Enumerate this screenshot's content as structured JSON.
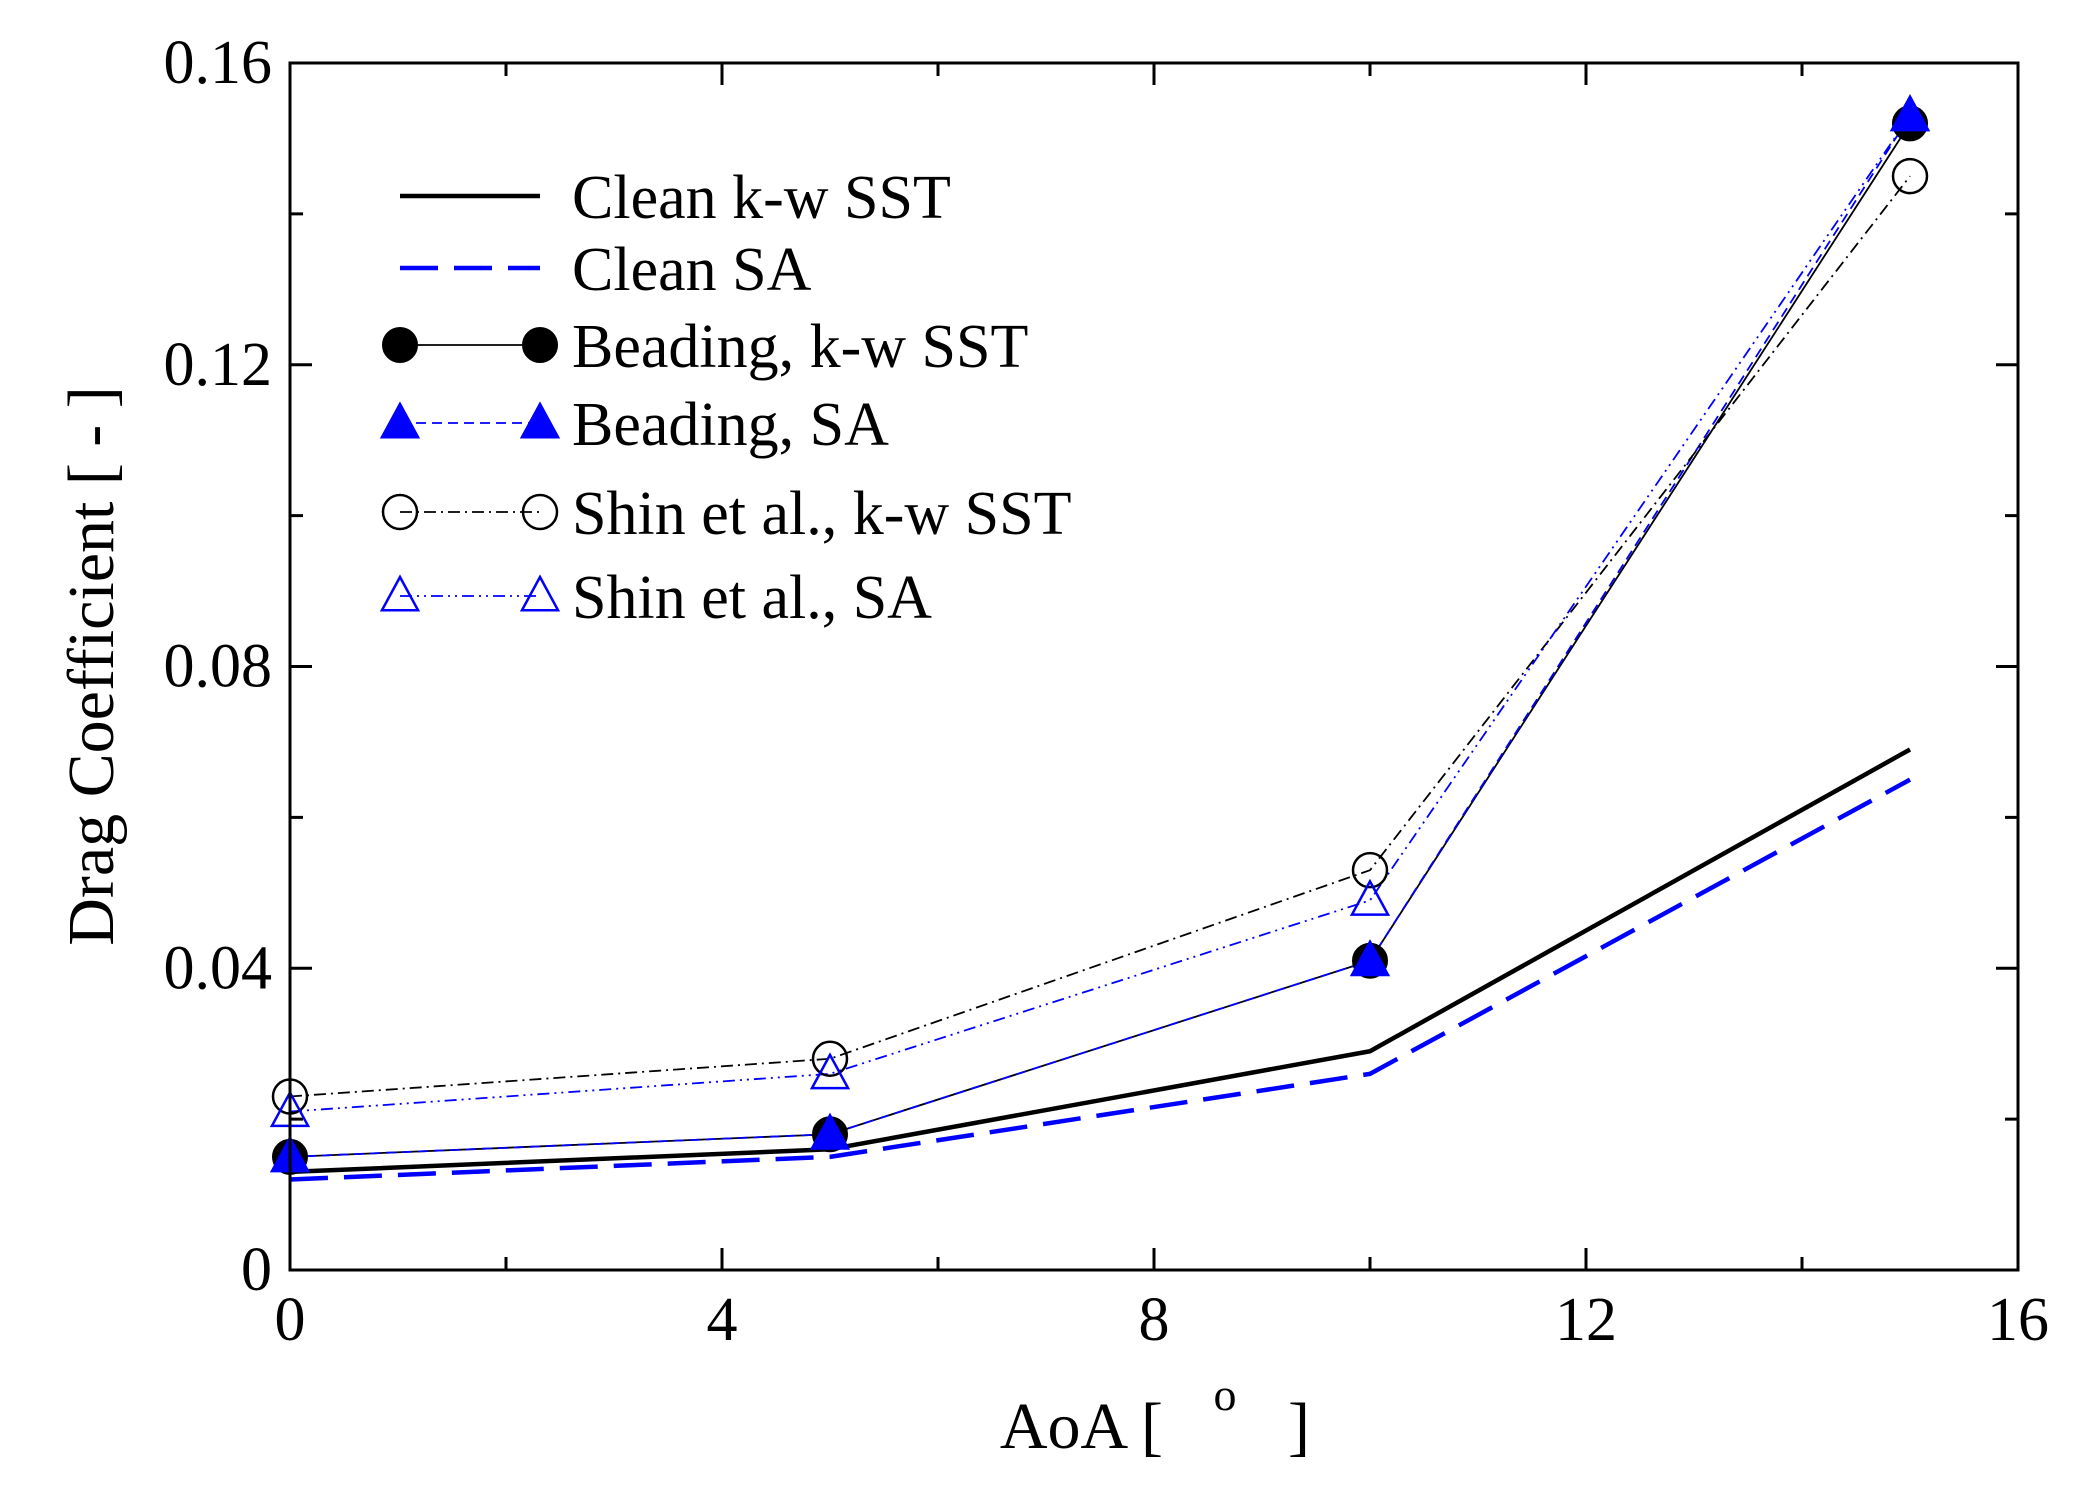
{
  "chart_data": {
    "type": "line",
    "title": "",
    "xlabel": "AoA [ ° ]",
    "xlabel_main": "AoA [",
    "xlabel_degree": "o",
    "xlabel_close": "]",
    "ylabel": "Drag Coefficient [ - ]",
    "xlim": [
      0,
      16
    ],
    "ylim": [
      0,
      0.16
    ],
    "x_ticks": [
      {
        "value": 0,
        "label": "0"
      },
      {
        "value": 4,
        "label": "4"
      },
      {
        "value": 8,
        "label": "8"
      },
      {
        "value": 12,
        "label": "12"
      },
      {
        "value": 16,
        "label": "16"
      }
    ],
    "y_ticks": [
      {
        "value": 0,
        "label": "0"
      },
      {
        "value": 0.04,
        "label": "0.04"
      },
      {
        "value": 0.08,
        "label": "0.08"
      },
      {
        "value": 0.12,
        "label": "0.12"
      },
      {
        "value": 0.16,
        "label": "0.16"
      }
    ],
    "x_minor_step": 2,
    "y_minor_step": 0.02,
    "legend_position": "top-left",
    "series": [
      {
        "name": "Clean k-w SST",
        "color": "#000000",
        "dash": "solid",
        "weight": "thick",
        "marker": "none",
        "x": [
          0,
          5,
          10,
          15
        ],
        "y": [
          0.013,
          0.016,
          0.029,
          0.069
        ]
      },
      {
        "name": "Clean SA",
        "color": "#0000ff",
        "dash": "long-dash",
        "weight": "thick",
        "marker": "none",
        "x": [
          0,
          5,
          10,
          15
        ],
        "y": [
          0.012,
          0.015,
          0.026,
          0.065
        ]
      },
      {
        "name": "Beading, k-w SST",
        "color": "#000000",
        "dash": "solid",
        "weight": "thin",
        "marker": "filled-circle",
        "x": [
          0,
          5,
          10,
          15
        ],
        "y": [
          0.015,
          0.018,
          0.041,
          0.152
        ]
      },
      {
        "name": "Beading, SA",
        "color": "#0000ff",
        "dash": "dashed",
        "weight": "thin",
        "marker": "filled-triangle",
        "x": [
          0,
          5,
          10,
          15
        ],
        "y": [
          0.015,
          0.018,
          0.041,
          0.153
        ]
      },
      {
        "name": "Shin et al., k-w SST",
        "color": "#000000",
        "dash": "dash-dot",
        "weight": "thin",
        "marker": "open-circle",
        "x": [
          0,
          5,
          10,
          15
        ],
        "y": [
          0.023,
          0.028,
          0.053,
          0.145
        ]
      },
      {
        "name": "Shin et al., SA",
        "color": "#0000ff",
        "dash": "dash-dot-dot",
        "weight": "thin",
        "marker": "open-triangle",
        "x": [
          0,
          5,
          10,
          15
        ],
        "y": [
          0.021,
          0.026,
          0.049,
          0.153
        ]
      }
    ]
  }
}
